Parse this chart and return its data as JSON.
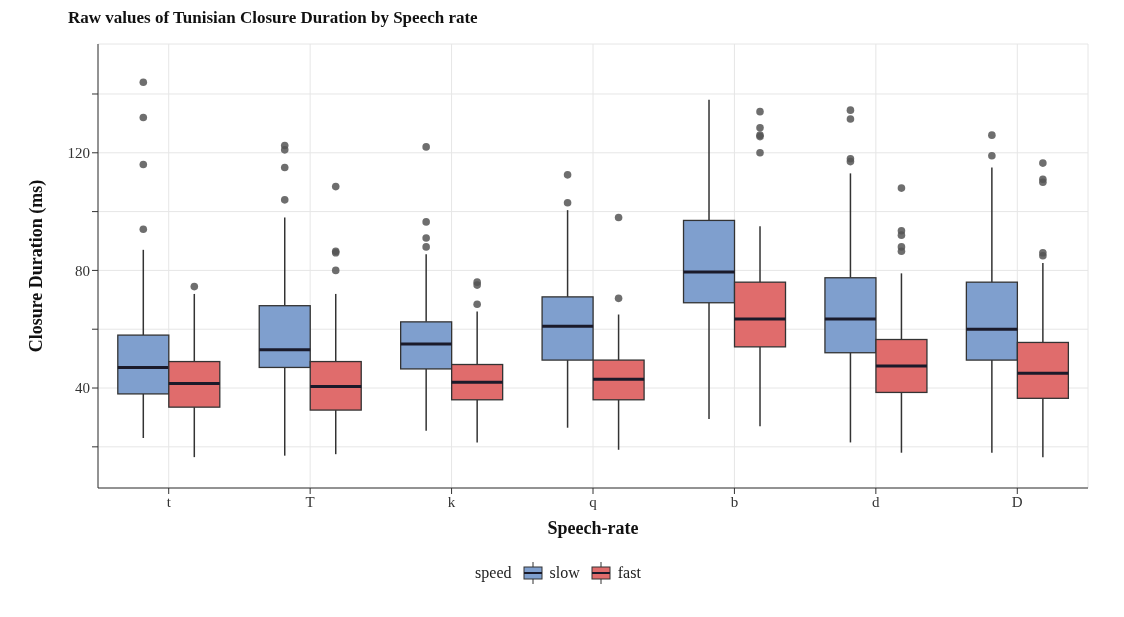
{
  "chart_data": {
    "type": "box",
    "title": "Raw values of Tunisian Closure Duration by Speech rate",
    "xlabel": "Speech-rate",
    "ylabel": "Closure Duration (ms)",
    "legend_title": "speed",
    "legend": "bottom",
    "grid": true,
    "categories": [
      "t",
      "T",
      "k",
      "q",
      "b",
      "d",
      "D"
    ],
    "ylim": [
      6,
      157
    ],
    "yticks": [
      {
        "value": 20,
        "label": null
      },
      40,
      {
        "value": 60,
        "label": null
      },
      80,
      {
        "value": 100,
        "label": null
      },
      120,
      {
        "value": 140,
        "label": null
      }
    ],
    "series": [
      {
        "name": "slow",
        "color": "#7f9fce",
        "boxes": [
          {
            "low": 23,
            "q1": 38,
            "median": 47,
            "q3": 58,
            "high": 87,
            "outliers": [
              144,
              132,
              116,
              94
            ]
          },
          {
            "low": 17,
            "q1": 47,
            "median": 53,
            "q3": 68,
            "high": 98,
            "outliers": [
              122.5,
              121,
              115,
              104
            ]
          },
          {
            "low": 25.5,
            "q1": 46.5,
            "median": 55,
            "q3": 62.5,
            "high": 85.5,
            "outliers": [
              122,
              96.5,
              91,
              88
            ]
          },
          {
            "low": 26.5,
            "q1": 49.5,
            "median": 61,
            "q3": 71,
            "high": 100.5,
            "outliers": [
              112.5,
              103
            ]
          },
          {
            "low": 29.5,
            "q1": 69,
            "median": 79.5,
            "q3": 97,
            "high": 138
          },
          {
            "low": 21.5,
            "q1": 52,
            "median": 63.5,
            "q3": 77.5,
            "high": 113,
            "outliers": [
              134.5,
              131.5,
              118,
              117
            ]
          },
          {
            "low": 18,
            "q1": 49.5,
            "median": 60,
            "q3": 76,
            "high": 115,
            "outliers": [
              126,
              119
            ]
          }
        ]
      },
      {
        "name": "fast",
        "color": "#e06c6c",
        "boxes": [
          {
            "low": 16.5,
            "q1": 33.5,
            "median": 41.5,
            "q3": 49,
            "high": 72,
            "outliers": [
              74.5
            ]
          },
          {
            "low": 17.5,
            "q1": 32.5,
            "median": 40.5,
            "q3": 49,
            "high": 72,
            "outliers": [
              108.5,
              86.5,
              86,
              80
            ]
          },
          {
            "low": 21.5,
            "q1": 36,
            "median": 42,
            "q3": 48,
            "high": 66,
            "outliers": [
              76,
              75,
              68.5
            ]
          },
          {
            "low": 19,
            "q1": 36,
            "median": 43,
            "q3": 49.5,
            "high": 65,
            "outliers": [
              98,
              70.5
            ]
          },
          {
            "low": 27,
            "q1": 54,
            "median": 63.5,
            "q3": 76,
            "high": 95,
            "outliers": [
              134,
              128.5,
              126,
              125.5,
              120
            ]
          },
          {
            "low": 18,
            "q1": 38.5,
            "median": 47.5,
            "q3": 56.5,
            "high": 79,
            "outliers": [
              108,
              93.5,
              92,
              88,
              86.5
            ]
          },
          {
            "low": 16.5,
            "q1": 36.5,
            "median": 45,
            "q3": 55.5,
            "high": 82.5,
            "outliers": [
              116.5,
              111,
              110,
              86,
              85
            ]
          }
        ]
      }
    ]
  }
}
